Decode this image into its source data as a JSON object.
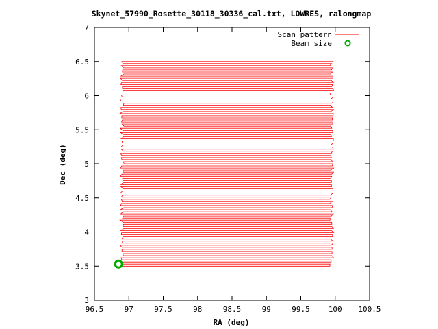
{
  "chart_data": {
    "type": "line",
    "title": "Skynet_57990_Rosette_30118_30336_cal.txt, LOWRES, ralongmap",
    "xlabel": "RA (deg)",
    "ylabel": "Dec (deg)",
    "xlim": [
      96.5,
      100.5
    ],
    "ylim": [
      3,
      7
    ],
    "x_ticks": [
      "96.5",
      "97",
      "97.5",
      "98",
      "98.5",
      "99",
      "99.5",
      "100",
      "100.5"
    ],
    "y_ticks": [
      "3",
      "3.5",
      "4",
      "4.5",
      "5",
      "5.5",
      "6",
      "6.5",
      "7"
    ],
    "x_tick_values": [
      96.5,
      97,
      97.5,
      98,
      98.5,
      99,
      99.5,
      100,
      100.5
    ],
    "y_tick_values": [
      3,
      3.5,
      4,
      4.5,
      5,
      5.5,
      6,
      6.5,
      7
    ],
    "grid": false,
    "legend_position": "top-right",
    "series": [
      {
        "name": "Scan pattern",
        "kind": "raster-scan",
        "color": "#ff0000",
        "ra_start": 96.9,
        "ra_end": 99.95,
        "dec_start": 3.5,
        "dec_end": 6.5,
        "n_rows": 99
      },
      {
        "name": "Beam size",
        "kind": "marker",
        "color": "#00aa00",
        "x": 96.85,
        "y": 3.53,
        "radius_deg": 0.05
      }
    ]
  }
}
